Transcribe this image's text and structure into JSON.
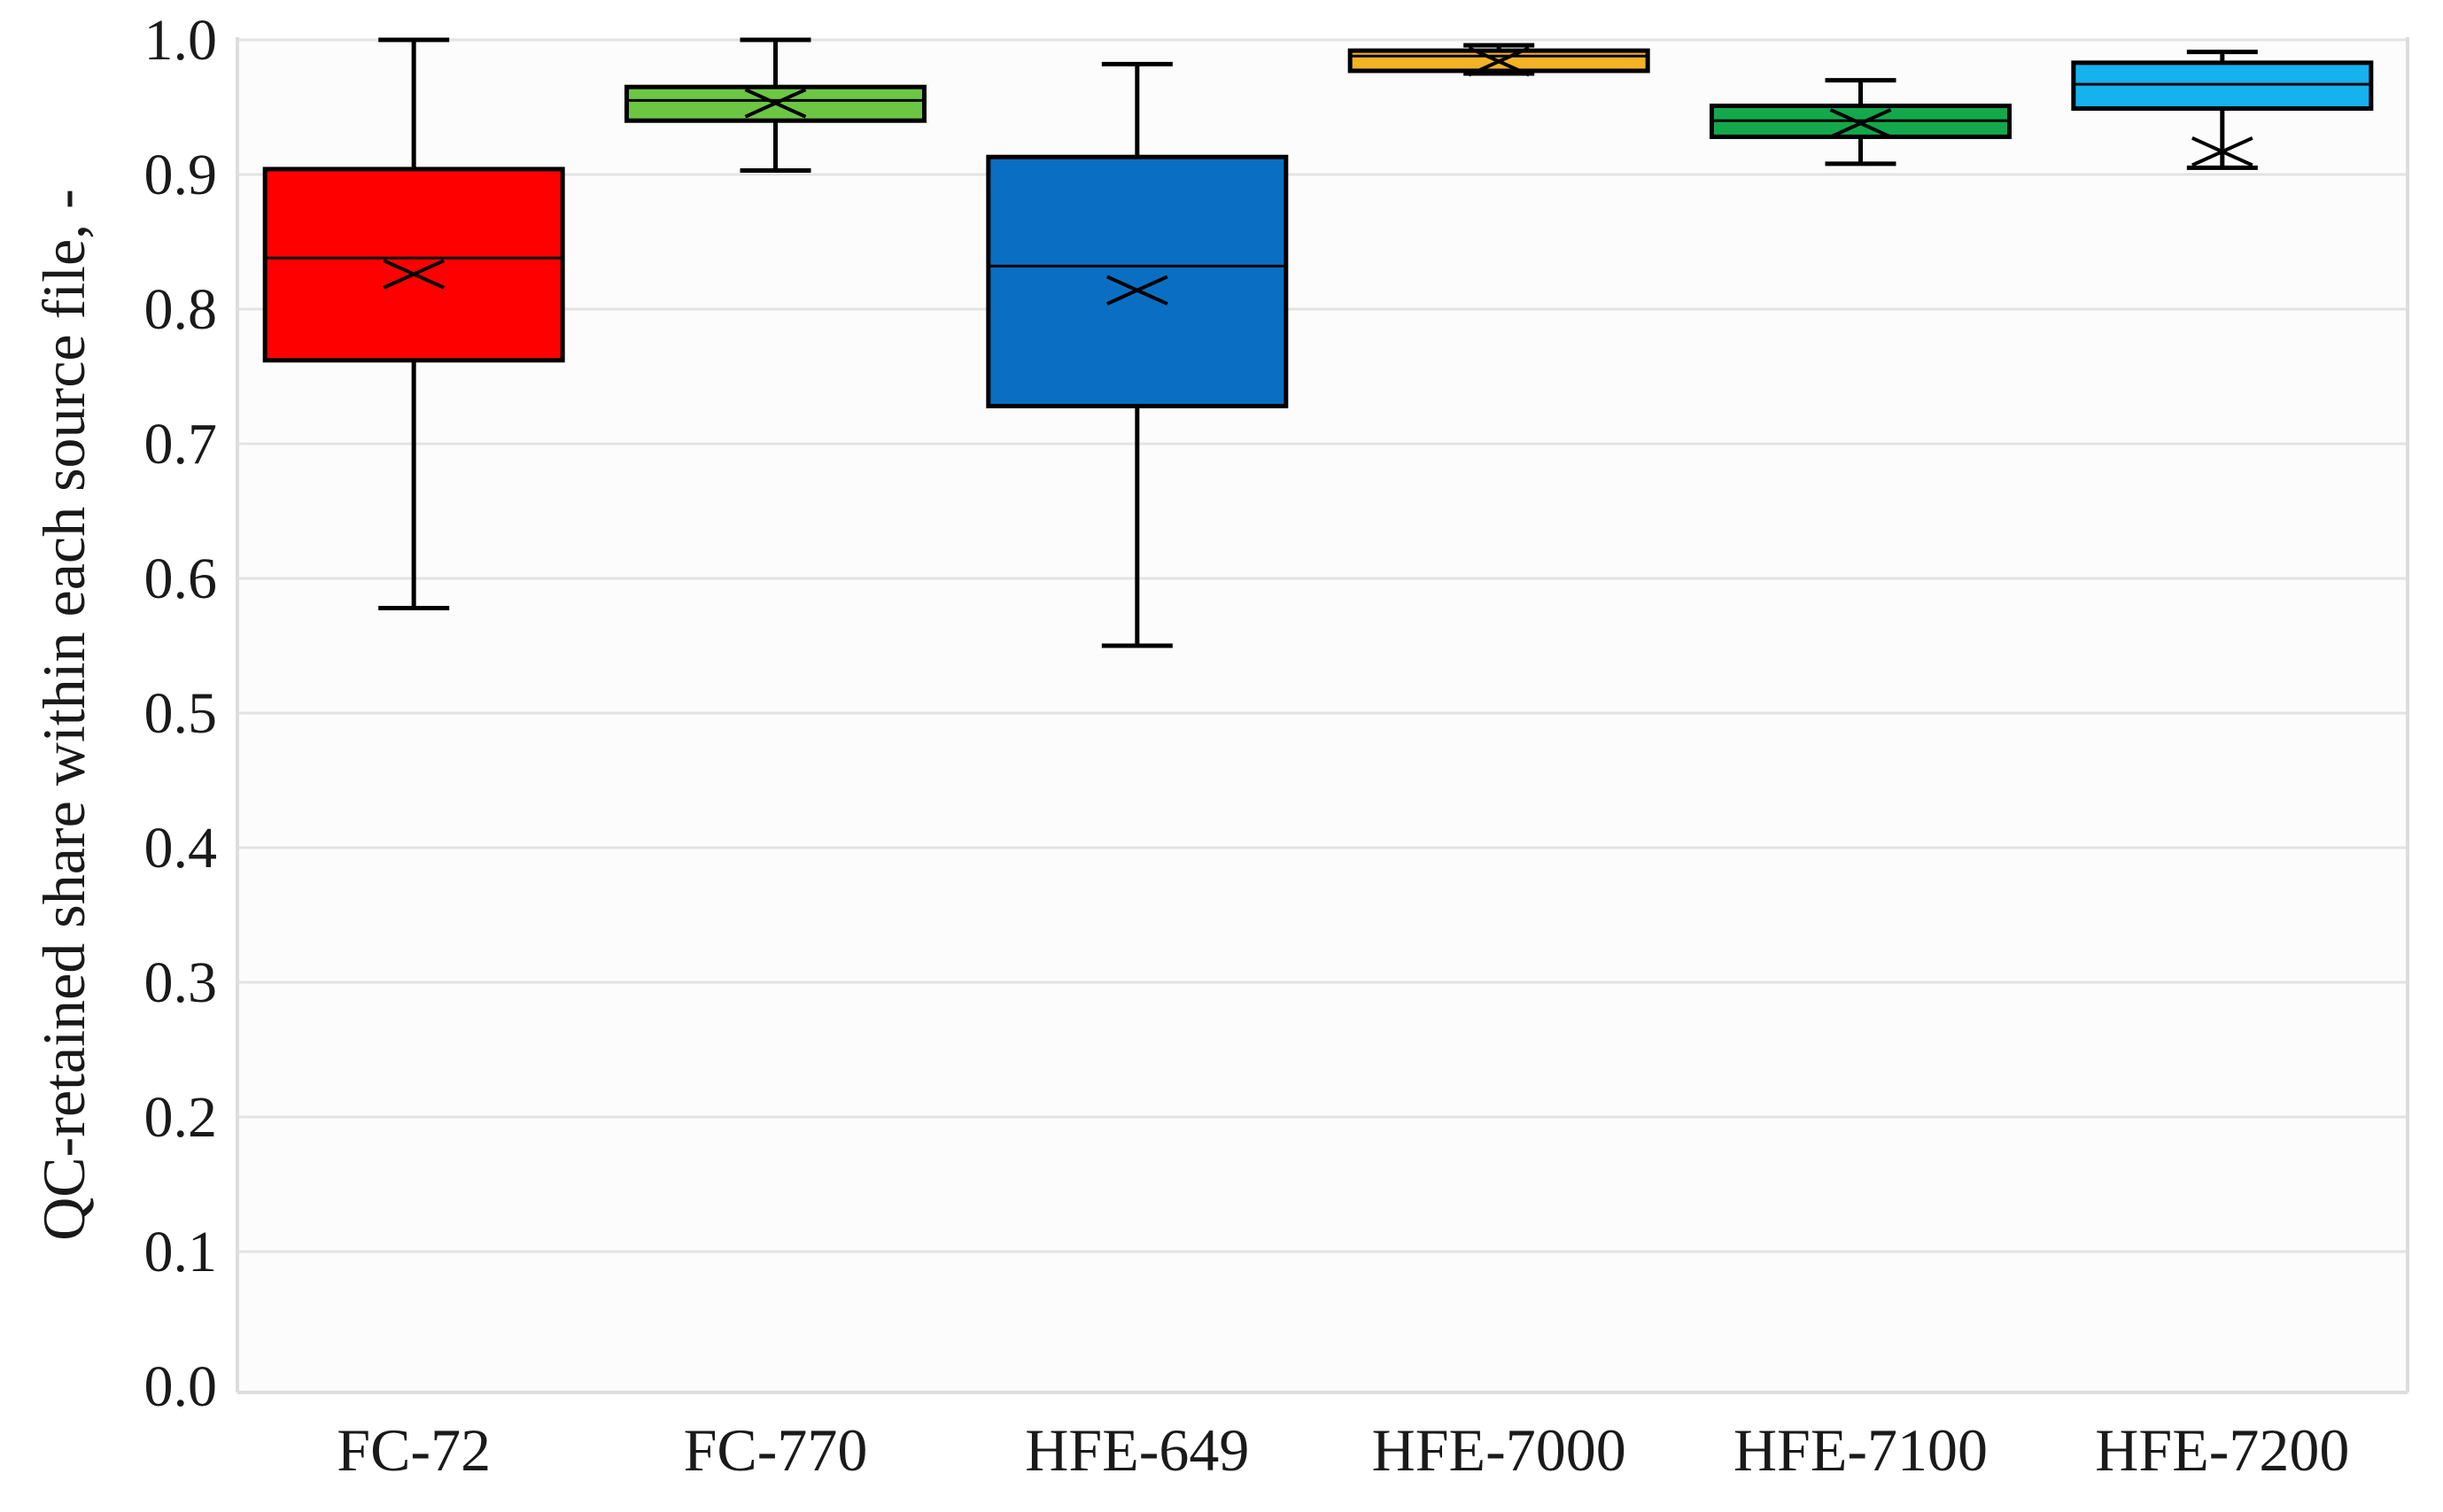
{
  "chart_data": {
    "type": "box",
    "title": "",
    "xlabel": "",
    "ylabel": "QC-retained share within each source file, -",
    "ylim": [
      0.0,
      1.0
    ],
    "yticks": [
      "0.0",
      "0.1",
      "0.2",
      "0.3",
      "0.4",
      "0.5",
      "0.6",
      "0.7",
      "0.8",
      "0.9",
      "1.0"
    ],
    "grid": "horizontal",
    "legend": "none",
    "categories": [
      "FC-72",
      "FC-770",
      "HFE-649",
      "HFE-7000",
      "HFE-7100",
      "HFE-7200"
    ],
    "boxes": [
      {
        "category": "FC-72",
        "min": 0.578,
        "q1": 0.762,
        "median": 0.838,
        "q3": 0.904,
        "max": 1.0,
        "mean": 0.826,
        "color": "#ff0000"
      },
      {
        "category": "FC-770",
        "min": 0.903,
        "q1": 0.94,
        "median": 0.955,
        "q3": 0.965,
        "max": 1.0,
        "mean": 0.953,
        "color": "#6cc644"
      },
      {
        "category": "HFE-649",
        "min": 0.55,
        "q1": 0.728,
        "median": 0.832,
        "q3": 0.913,
        "max": 0.982,
        "mean": 0.814,
        "color": "#0a6fc2"
      },
      {
        "category": "HFE-7000",
        "min": 0.975,
        "q1": 0.977,
        "median": 0.988,
        "q3": 0.992,
        "max": 0.996,
        "mean": 0.984,
        "color": "#f2b324"
      },
      {
        "category": "HFE-7100",
        "min": 0.908,
        "q1": 0.928,
        "median": 0.94,
        "q3": 0.951,
        "max": 0.97,
        "mean": 0.938,
        "color": "#13a84b"
      },
      {
        "category": "HFE-7200",
        "min": 0.905,
        "q1": 0.949,
        "median": 0.967,
        "q3": 0.983,
        "max": 0.991,
        "mean": 0.917,
        "color": "#15b2ef"
      }
    ],
    "colors": {
      "plot_background": "#fcfcfc",
      "grid": "#e3e3e3",
      "frame": "#dddddd",
      "box_stroke": "#000000",
      "whisker": "#000000"
    }
  }
}
